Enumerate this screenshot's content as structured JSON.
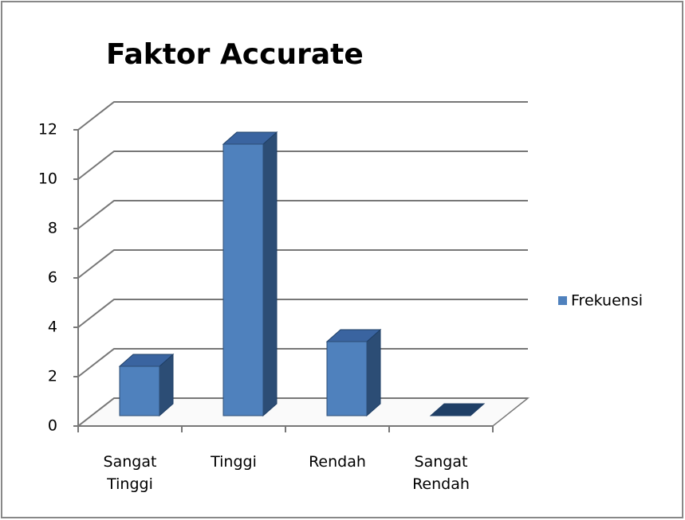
{
  "chart_data": {
    "type": "bar",
    "title": "Faktor Accurate",
    "categories": [
      "Sangat Tinggi",
      "Tinggi",
      "Rendah",
      "Sangat Rendah"
    ],
    "series": [
      {
        "name": "Frekuensi",
        "color": "#4f81bd",
        "values": [
          2,
          11,
          3,
          0
        ]
      }
    ],
    "ylim": [
      0,
      12
    ],
    "yticks": [
      0,
      2,
      4,
      6,
      8,
      10,
      12
    ],
    "grid": true,
    "legend": "right"
  }
}
